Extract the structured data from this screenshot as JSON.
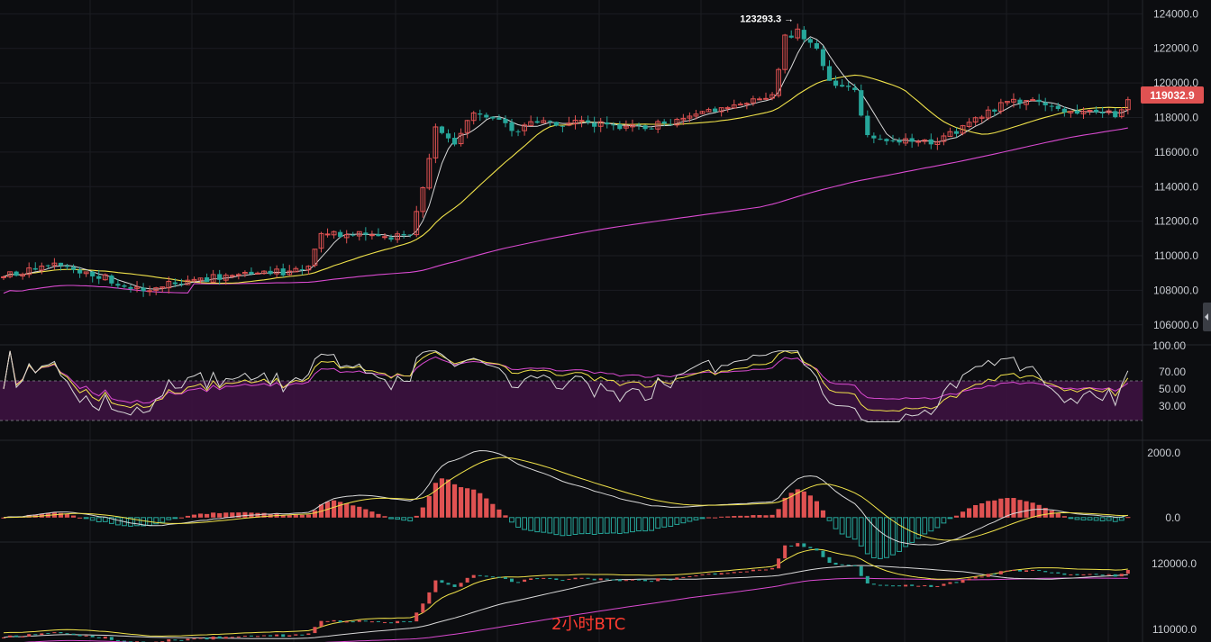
{
  "chart_data": {
    "type": "candlestick",
    "timeframe_label": "2小时BTC",
    "current_price": "119032.9",
    "peak_label": "123293.3 →",
    "colors": {
      "up": "#e05252",
      "down": "#26a69a",
      "ma_fast": "#d8d8d8",
      "ma_mid": "#f0e24a",
      "ma_slow": "#d94ad0",
      "rsi_band": "#3c1240",
      "macd_dif": "#d8d8d8",
      "macd_dea": "#f0e24a"
    },
    "price_axis": {
      "range": [
        105000,
        124800
      ],
      "ticks": [
        "124000.0",
        "122000.0",
        "120000.0",
        "118000.0",
        "116000.0",
        "114000.0",
        "112000.0",
        "110000.0",
        "108000.0",
        "106000.0"
      ]
    },
    "rsi_axis": {
      "range": [
        0,
        100
      ],
      "ticks": [
        "100.00",
        "70.00",
        "50.00",
        "30.00"
      ],
      "band": [
        30,
        70
      ]
    },
    "macd_axis": {
      "range": [
        -700,
        2300
      ],
      "ticks": [
        "2000.0",
        "0.0"
      ]
    },
    "lower_axis": {
      "range": [
        108500,
        123000
      ],
      "ticks": [
        "120000.0",
        "110000.0"
      ]
    },
    "anchors": [
      [
        0,
        108800
      ],
      [
        8,
        109500
      ],
      [
        14,
        109000
      ],
      [
        18,
        108400
      ],
      [
        22,
        108000
      ],
      [
        28,
        108500
      ],
      [
        35,
        108800
      ],
      [
        42,
        109000
      ],
      [
        48,
        109200
      ],
      [
        50,
        111200
      ],
      [
        56,
        111300
      ],
      [
        61,
        111000
      ],
      [
        64,
        111200
      ],
      [
        66,
        113800
      ],
      [
        68,
        117500
      ],
      [
        71,
        116500
      ],
      [
        74,
        118200
      ],
      [
        77,
        118000
      ],
      [
        80,
        117300
      ],
      [
        84,
        117700
      ],
      [
        90,
        117700
      ],
      [
        96,
        117500
      ],
      [
        100,
        117400
      ],
      [
        106,
        117800
      ],
      [
        112,
        118500
      ],
      [
        118,
        118900
      ],
      [
        121,
        119300
      ],
      [
        123,
        122600
      ],
      [
        125,
        123000
      ],
      [
        128,
        121800
      ],
      [
        130,
        120000
      ],
      [
        134,
        119500
      ],
      [
        136,
        117000
      ],
      [
        138,
        116600
      ],
      [
        142,
        116800
      ],
      [
        146,
        116600
      ],
      [
        150,
        117200
      ],
      [
        154,
        118000
      ],
      [
        157,
        118700
      ],
      [
        161,
        119000
      ],
      [
        165,
        118800
      ],
      [
        168,
        118300
      ],
      [
        172,
        118400
      ],
      [
        175,
        118200
      ],
      [
        177,
        119032.9
      ]
    ],
    "volatility": 450,
    "candle_count": 178,
    "ma_periods": [
      5,
      20,
      120
    ]
  }
}
